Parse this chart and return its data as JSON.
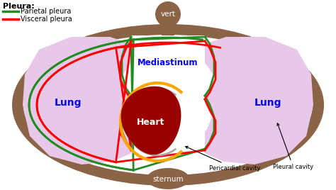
{
  "bg_color": "#ffffff",
  "thorax_outer_color": "#8B6347",
  "lung_color": "#E8C8E8",
  "heart_color": "#990000",
  "parietal_pleura_color": "#228B22",
  "visceral_pleura_color": "#FF0000",
  "pericardium_outer_color": "#FFA500",
  "pericardium_inner_color": "#AAAAAA",
  "title_text": "Pleura:",
  "legend_parietal": "Parietal pleura",
  "legend_visceral": "Visceral pleura",
  "label_vert": "vert",
  "label_sternum": "sternum",
  "label_lung_left": "Lung",
  "label_lung_right": "Lung",
  "label_mediastinum": "Mediastinum",
  "label_heart": "Heart",
  "label_pericardial": "Pericardial cavity",
  "label_pleural": "Pleural cavity"
}
